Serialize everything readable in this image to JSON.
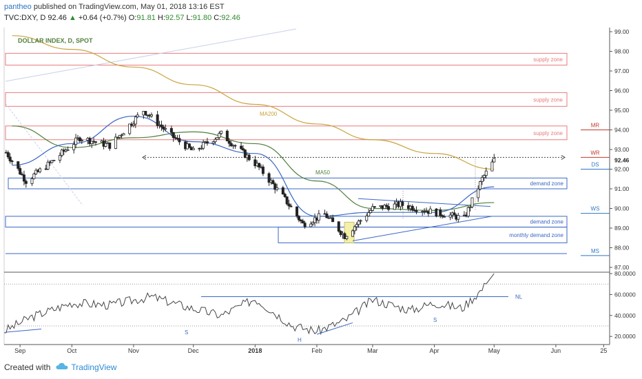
{
  "header": {
    "user": "pantheo",
    "published": "published on TradingView.com, May 01, 2018 13:16 EST",
    "symbol": "TVC:DXY, D",
    "last": "92.46",
    "change_arrow": "▲",
    "change": "+0.64 (+0.7%)",
    "open_label": "O:",
    "open": "91.81",
    "high_label": "H:",
    "high": "92.57",
    "low_label": "L:",
    "low": "91.80",
    "close_label": "C:",
    "close": "92.46"
  },
  "footer": {
    "created_with": "Created with",
    "brand": "TradingView"
  },
  "colors": {
    "ma200": "#c9a23b",
    "ma50": "#4f7f3a",
    "fast_ma": "#3b67c4",
    "supply": "#e87a7a",
    "demand": "#3b67c4",
    "candle_up": "#ffffff",
    "candle_down": "#222222",
    "accent_blue": "#2d74c4"
  },
  "chart_data": [
    {
      "type": "line",
      "title": "DOLLAR INDEX, D, SPOT",
      "y_axis": {
        "ticks": [
          "99.00",
          "98.00",
          "97.00",
          "96.00",
          "95.00",
          "94.00",
          "93.00",
          "92.00",
          "91.00",
          "90.00",
          "89.00",
          "88.00",
          "87.00"
        ],
        "ylim": [
          86.6,
          99.1
        ],
        "current_price_label": "92.46"
      },
      "x_axis": {
        "ticks": [
          "Sep",
          "Oct",
          "Nov",
          "Dec",
          "2018",
          "Feb",
          "Mar",
          "Apr",
          "May",
          "Jun",
          "25"
        ],
        "range": [
          "2017-08-28",
          "2018-06-28"
        ]
      },
      "series": [
        {
          "name": "MA200",
          "x": [
            "2017-09-01",
            "2017-10-01",
            "2017-11-01",
            "2017-12-01",
            "2018-01-01",
            "2018-02-01",
            "2018-03-01",
            "2018-04-01",
            "2018-05-01"
          ],
          "values": [
            98.8,
            98.1,
            97.2,
            96.3,
            95.3,
            94.3,
            93.5,
            92.8,
            92.0
          ]
        },
        {
          "name": "MA50",
          "x": [
            "2017-09-01",
            "2017-10-01",
            "2017-11-01",
            "2017-12-01",
            "2018-01-01",
            "2018-02-01",
            "2018-03-01",
            "2018-04-01",
            "2018-05-01"
          ],
          "values": [
            94.2,
            93.1,
            93.6,
            93.9,
            93.3,
            91.4,
            90.0,
            89.9,
            90.3
          ]
        },
        {
          "name": "",
          "x": [
            "2017-09-01",
            "2017-10-01",
            "2017-11-01",
            "2017-12-01",
            "2018-01-01",
            "2018-02-01",
            "2018-03-01",
            "2018-04-01",
            "2018-05-01"
          ],
          "values": [
            92.2,
            93.3,
            94.7,
            93.4,
            92.8,
            89.6,
            89.8,
            89.8,
            91.1
          ]
        },
        {
          "name": "",
          "x": [
            "2017-08-28",
            "2017-09-08",
            "2017-09-20",
            "2017-10-05",
            "2017-10-20",
            "2017-11-06",
            "2017-11-20",
            "2017-12-01",
            "2017-12-15",
            "2018-01-02",
            "2018-01-15",
            "2018-01-25",
            "2018-02-05",
            "2018-02-15",
            "2018-03-01",
            "2018-03-15",
            "2018-04-01",
            "2018-04-16",
            "2018-04-25",
            "2018-05-01"
          ],
          "values": [
            93.0,
            91.4,
            92.3,
            93.6,
            93.2,
            95.0,
            93.7,
            92.9,
            93.8,
            92.2,
            90.6,
            89.2,
            89.7,
            88.6,
            90.0,
            90.2,
            89.8,
            89.5,
            91.5,
            92.46
          ]
        }
      ],
      "annotations": {
        "ma200_label": "MA200",
        "ma50_label": "MA50",
        "supply_zones": [
          {
            "label": "supply zone",
            "range": [
              97.3,
              97.9
            ]
          },
          {
            "label": "supply zone",
            "range": [
              95.2,
              95.9
            ]
          },
          {
            "label": "supply zone",
            "range": [
              93.5,
              94.2
            ]
          }
        ],
        "demand_zones": [
          {
            "label": "demand zone",
            "range": [
              91.0,
              91.55
            ]
          },
          {
            "label": "demand zone",
            "range": [
              89.05,
              89.6
            ]
          },
          {
            "label": "monthly demand zone",
            "range": [
              88.25,
              89.05
            ]
          }
        ],
        "monthly_demand_lower": 87.7,
        "resistance_dotted": 92.6,
        "levels": [
          {
            "label": "MR",
            "value": 94.0
          },
          {
            "label": "WR",
            "value": 92.6
          },
          {
            "label": "DS",
            "value": 92.0
          },
          {
            "label": "WS",
            "value": 89.75
          },
          {
            "label": "MS",
            "value": 87.6
          }
        ]
      },
      "grid": false
    },
    {
      "type": "line",
      "title": "",
      "y_axis": {
        "ticks": [
          "80.0000",
          "60.0000",
          "40.0000",
          "20.0000"
        ],
        "ylim": [
          15,
          82
        ]
      },
      "x": [
        "2017-08-28",
        "2017-09-10",
        "2017-10-01",
        "2017-10-20",
        "2017-11-10",
        "2017-11-28",
        "2017-12-15",
        "2018-01-01",
        "2018-01-20",
        "2018-02-01",
        "2018-02-15",
        "2018-03-01",
        "2018-03-20",
        "2018-04-01",
        "2018-04-15",
        "2018-04-25",
        "2018-05-01"
      ],
      "values": [
        25,
        38,
        52,
        50,
        58,
        48,
        40,
        56,
        30,
        25,
        35,
        55,
        45,
        52,
        47,
        65,
        80
      ],
      "annotations": {
        "neckline_label": "NL",
        "neckline_value": 58,
        "head_label": "H",
        "shoulder_labels": [
          "S",
          "S"
        ],
        "overbought": 70,
        "oversold": 30
      }
    }
  ]
}
